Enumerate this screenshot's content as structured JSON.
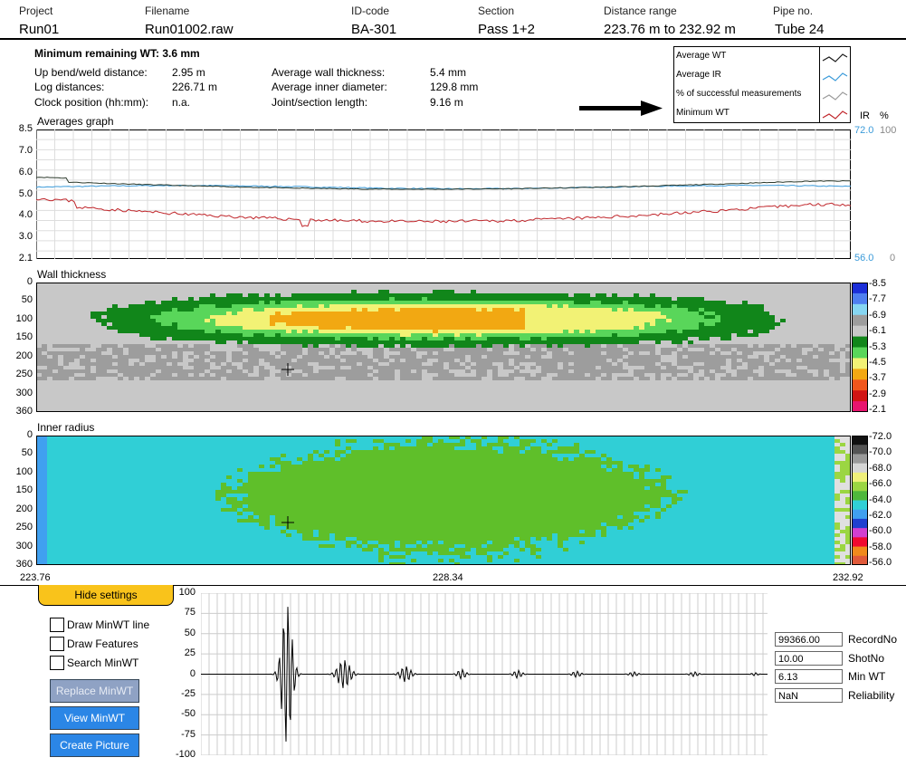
{
  "header": {
    "project_label": "Project",
    "project_value": "Run01",
    "filename_label": "Filename",
    "filename_value": "Run01002.raw",
    "id_label": "ID-code",
    "id_value": "BA-301",
    "section_label": "Section",
    "section_value": "Pass 1+2",
    "range_label": "Distance range",
    "range_value": "223.76 m to 232.92 m",
    "pipe_label": "Pipe no.",
    "pipe_value": "Tube 24"
  },
  "summary": {
    "min_wt": "Minimum remaining WT:  3.6 mm",
    "left": [
      {
        "label": "Up bend/weld distance:",
        "value": "2.95 m"
      },
      {
        "label": "Log distances:",
        "value": "226.71 m"
      },
      {
        "label": "Clock position (hh:mm):",
        "value": "n.a."
      }
    ],
    "right": [
      {
        "label": "Average wall thickness:",
        "value": "5.4 mm"
      },
      {
        "label": "Average inner diameter:",
        "value": "129.8 mm"
      },
      {
        "label": "Joint/section length:",
        "value": "9.16 m"
      }
    ]
  },
  "legend": {
    "items": [
      {
        "label": "Average WT",
        "color": "#1a1a1a"
      },
      {
        "label": "Average IR",
        "color": "#3a9ad9"
      },
      {
        "label": "% of successful measurements",
        "color": "#9a9a9a"
      },
      {
        "label": "Minimum WT",
        "color": "#c0262b"
      }
    ]
  },
  "averages": {
    "title": "Averages graph",
    "y_ticks": [
      "8.5",
      "7.0",
      "6.0",
      "5.0",
      "4.0",
      "3.0",
      "2.1"
    ],
    "right_head_ir": "IR",
    "right_head_pct": "%",
    "right_top_ir": "72.0",
    "right_top_pct": "100",
    "right_bot_ir": "56.0",
    "right_bot_pct": "0"
  },
  "wall": {
    "title": "Wall thickness",
    "y_ticks": [
      "0",
      "50",
      "100",
      "150",
      "200",
      "250",
      "300",
      "360"
    ],
    "scale": [
      "8.5",
      "7.7",
      "6.9",
      "6.1",
      "5.3",
      "4.5",
      "3.7",
      "2.9",
      "2.1"
    ],
    "scale_colors": [
      "#1c2fd8",
      "#4f7ff0",
      "#86d6f2",
      "#9d9d9d",
      "#c8c8c8",
      "#11861a",
      "#59d65a",
      "#f2f275",
      "#f2a812",
      "#f0561c",
      "#d11414",
      "#e8146e"
    ]
  },
  "inner": {
    "title": "Inner radius",
    "y_ticks": [
      "0",
      "50",
      "100",
      "150",
      "200",
      "250",
      "300",
      "360"
    ],
    "scale": [
      "72.0",
      "70.0",
      "68.0",
      "66.0",
      "64.0",
      "62.0",
      "60.0",
      "58.0",
      "56.0"
    ],
    "scale_colors": [
      "#111111",
      "#555555",
      "#9a9a9a",
      "#d6d6d6",
      "#f0f07a",
      "#9bd642",
      "#4fb83c",
      "#30cfd6",
      "#40a0f0",
      "#2040d0",
      "#d23fd0",
      "#f00a30",
      "#f08a1c",
      "#e05a3a"
    ]
  },
  "x_axis": {
    "left": "223.76",
    "mid": "228.34",
    "right": "232.92"
  },
  "controls": {
    "hide_settings": "Hide settings",
    "draw_minwt_line": "Draw MinWT line",
    "draw_features": "Draw Features",
    "search_minwt": "Search MinWT",
    "replace_minwt": "Replace MinWT",
    "view_minwt": "View MinWT",
    "create_picture": "Create Picture"
  },
  "waveform": {
    "y_ticks": [
      "100",
      "75",
      "50",
      "25",
      "0",
      "-25",
      "-50",
      "-75",
      "-100"
    ]
  },
  "fields": [
    {
      "value": "99366.00",
      "label": "RecordNo"
    },
    {
      "value": "10.00",
      "label": "ShotNo"
    },
    {
      "value": "6.13",
      "label": "Min WT"
    },
    {
      "value": "NaN",
      "label": "Reliability"
    }
  ]
}
